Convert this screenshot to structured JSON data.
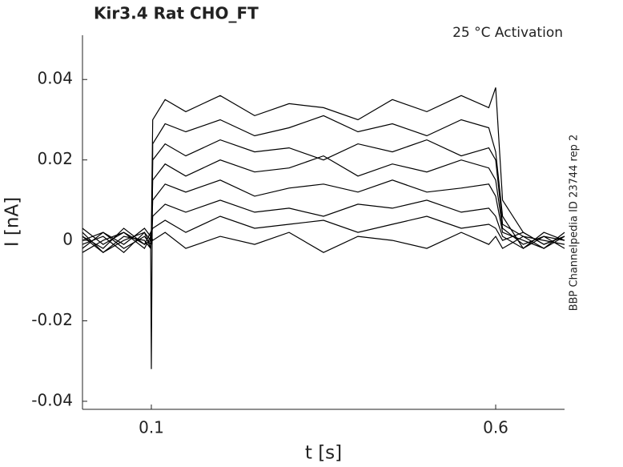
{
  "chart_data": {
    "type": "line",
    "title": "Kir3.4  Rat  CHO_FT",
    "annotation": "25 °C  Activation",
    "side_note": "BBP Channelpedia ID 23744 rep 2",
    "x_label": "t [s]",
    "y_label": "I [nA]",
    "xlim": [
      0,
      0.7
    ],
    "ylim": [
      -0.042,
      0.051
    ],
    "xticks": [
      0.1,
      0.6
    ],
    "yticks": [
      -0.04,
      -0.02,
      0,
      0.02,
      0.04
    ],
    "x": [
      0,
      0.03,
      0.06,
      0.09,
      0.099,
      0.1,
      0.102,
      0.12,
      0.15,
      0.2,
      0.25,
      0.3,
      0.35,
      0.4,
      0.45,
      0.5,
      0.55,
      0.59,
      0.6,
      0.61,
      0.64,
      0.67,
      0.7
    ],
    "series": [
      {
        "color": "#000000",
        "values": [
          0.001,
          -0.002,
          0.003,
          -0.001,
          0.0,
          0.002,
          0.03,
          0.035,
          0.032,
          0.036,
          0.031,
          0.034,
          0.033,
          0.03,
          0.035,
          0.032,
          0.036,
          0.033,
          0.038,
          0.01,
          0.002,
          -0.001,
          0.001
        ]
      },
      {
        "color": "#000000",
        "values": [
          -0.002,
          0.002,
          -0.001,
          0.003,
          0.001,
          -0.032,
          0.024,
          0.029,
          0.027,
          0.03,
          0.026,
          0.028,
          0.031,
          0.027,
          0.029,
          0.026,
          0.03,
          0.028,
          0.022,
          0.006,
          -0.002,
          0.002,
          0.0
        ]
      },
      {
        "color": "#000000",
        "values": [
          0.002,
          -0.003,
          0.001,
          0.0,
          -0.002,
          0.001,
          0.02,
          0.024,
          0.021,
          0.025,
          0.022,
          0.023,
          0.02,
          0.024,
          0.022,
          0.025,
          0.021,
          0.023,
          0.02,
          0.004,
          0.001,
          -0.002,
          0.002
        ]
      },
      {
        "color": "#000000",
        "values": [
          -0.001,
          0.001,
          -0.003,
          0.002,
          0.0,
          0.001,
          0.015,
          0.019,
          0.016,
          0.02,
          0.017,
          0.018,
          0.021,
          0.016,
          0.019,
          0.017,
          0.02,
          0.018,
          0.015,
          0.003,
          -0.001,
          0.001,
          -0.002
        ]
      },
      {
        "color": "#000000",
        "values": [
          0.003,
          -0.001,
          0.002,
          -0.002,
          0.001,
          0.0,
          0.01,
          0.014,
          0.012,
          0.015,
          0.011,
          0.013,
          0.014,
          0.012,
          0.015,
          0.012,
          0.013,
          0.014,
          0.011,
          0.002,
          0.0,
          -0.002,
          0.001
        ]
      },
      {
        "color": "#000000",
        "values": [
          -0.003,
          0.0,
          0.002,
          -0.001,
          0.002,
          -0.001,
          0.006,
          0.009,
          0.007,
          0.01,
          0.007,
          0.008,
          0.006,
          0.009,
          0.008,
          0.01,
          0.007,
          0.008,
          0.006,
          0.001,
          -0.002,
          0.001,
          0.0
        ]
      },
      {
        "color": "#000000",
        "values": [
          0.0,
          0.002,
          -0.002,
          0.001,
          -0.001,
          0.002,
          0.003,
          0.005,
          0.002,
          0.006,
          0.003,
          0.004,
          0.005,
          0.002,
          0.004,
          0.006,
          0.003,
          0.004,
          0.003,
          0.0,
          0.002,
          -0.001,
          0.001
        ]
      },
      {
        "color": "#000000",
        "values": [
          0.001,
          -0.003,
          0.0,
          0.002,
          -0.002,
          0.001,
          0.0,
          0.002,
          -0.002,
          0.001,
          -0.001,
          0.002,
          -0.003,
          0.001,
          0.0,
          -0.002,
          0.002,
          -0.001,
          0.001,
          -0.002,
          0.001,
          0.0,
          -0.001
        ]
      }
    ]
  }
}
